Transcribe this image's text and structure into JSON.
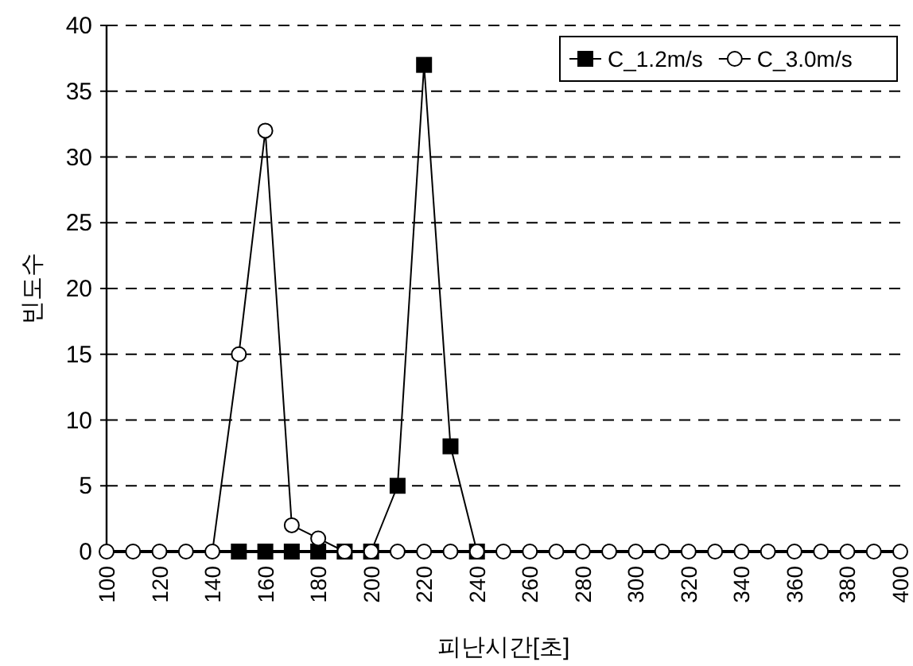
{
  "chart_data": {
    "type": "line",
    "xlabel": "피난시간[초]",
    "ylabel": "빈도수",
    "xlim": [
      100,
      400
    ],
    "xticks": [
      100,
      120,
      140,
      160,
      180,
      200,
      220,
      240,
      260,
      280,
      300,
      320,
      340,
      360,
      380,
      400
    ],
    "ylim": [
      0,
      40
    ],
    "yticks": [
      0,
      5,
      10,
      15,
      20,
      25,
      30,
      35,
      40
    ],
    "grid": "y",
    "legend": "top right",
    "line_style": "solid",
    "series": [
      {
        "name": "C_1.2m/s",
        "color": "#000000",
        "marker": "square",
        "x": [
          150,
          160,
          170,
          180,
          190,
          200,
          210,
          220,
          230,
          240
        ],
        "values": [
          0,
          0,
          0,
          0,
          0,
          0,
          5,
          37,
          8,
          0
        ]
      },
      {
        "name": "C_3.0m/s",
        "color": "#000000",
        "marker": "circle",
        "x": [
          100,
          110,
          120,
          130,
          140,
          150,
          160,
          170,
          180,
          190,
          200,
          210,
          220,
          230,
          240,
          250,
          260,
          270,
          280,
          290,
          300,
          310,
          320,
          330,
          340,
          350,
          360,
          370,
          380,
          390,
          400
        ],
        "values": [
          0,
          0,
          0,
          0,
          0,
          15,
          32,
          2,
          1,
          0,
          0,
          0,
          0,
          0,
          0,
          0,
          0,
          0,
          0,
          0,
          0,
          0,
          0,
          0,
          0,
          0,
          0,
          0,
          0,
          0,
          0
        ]
      }
    ]
  }
}
